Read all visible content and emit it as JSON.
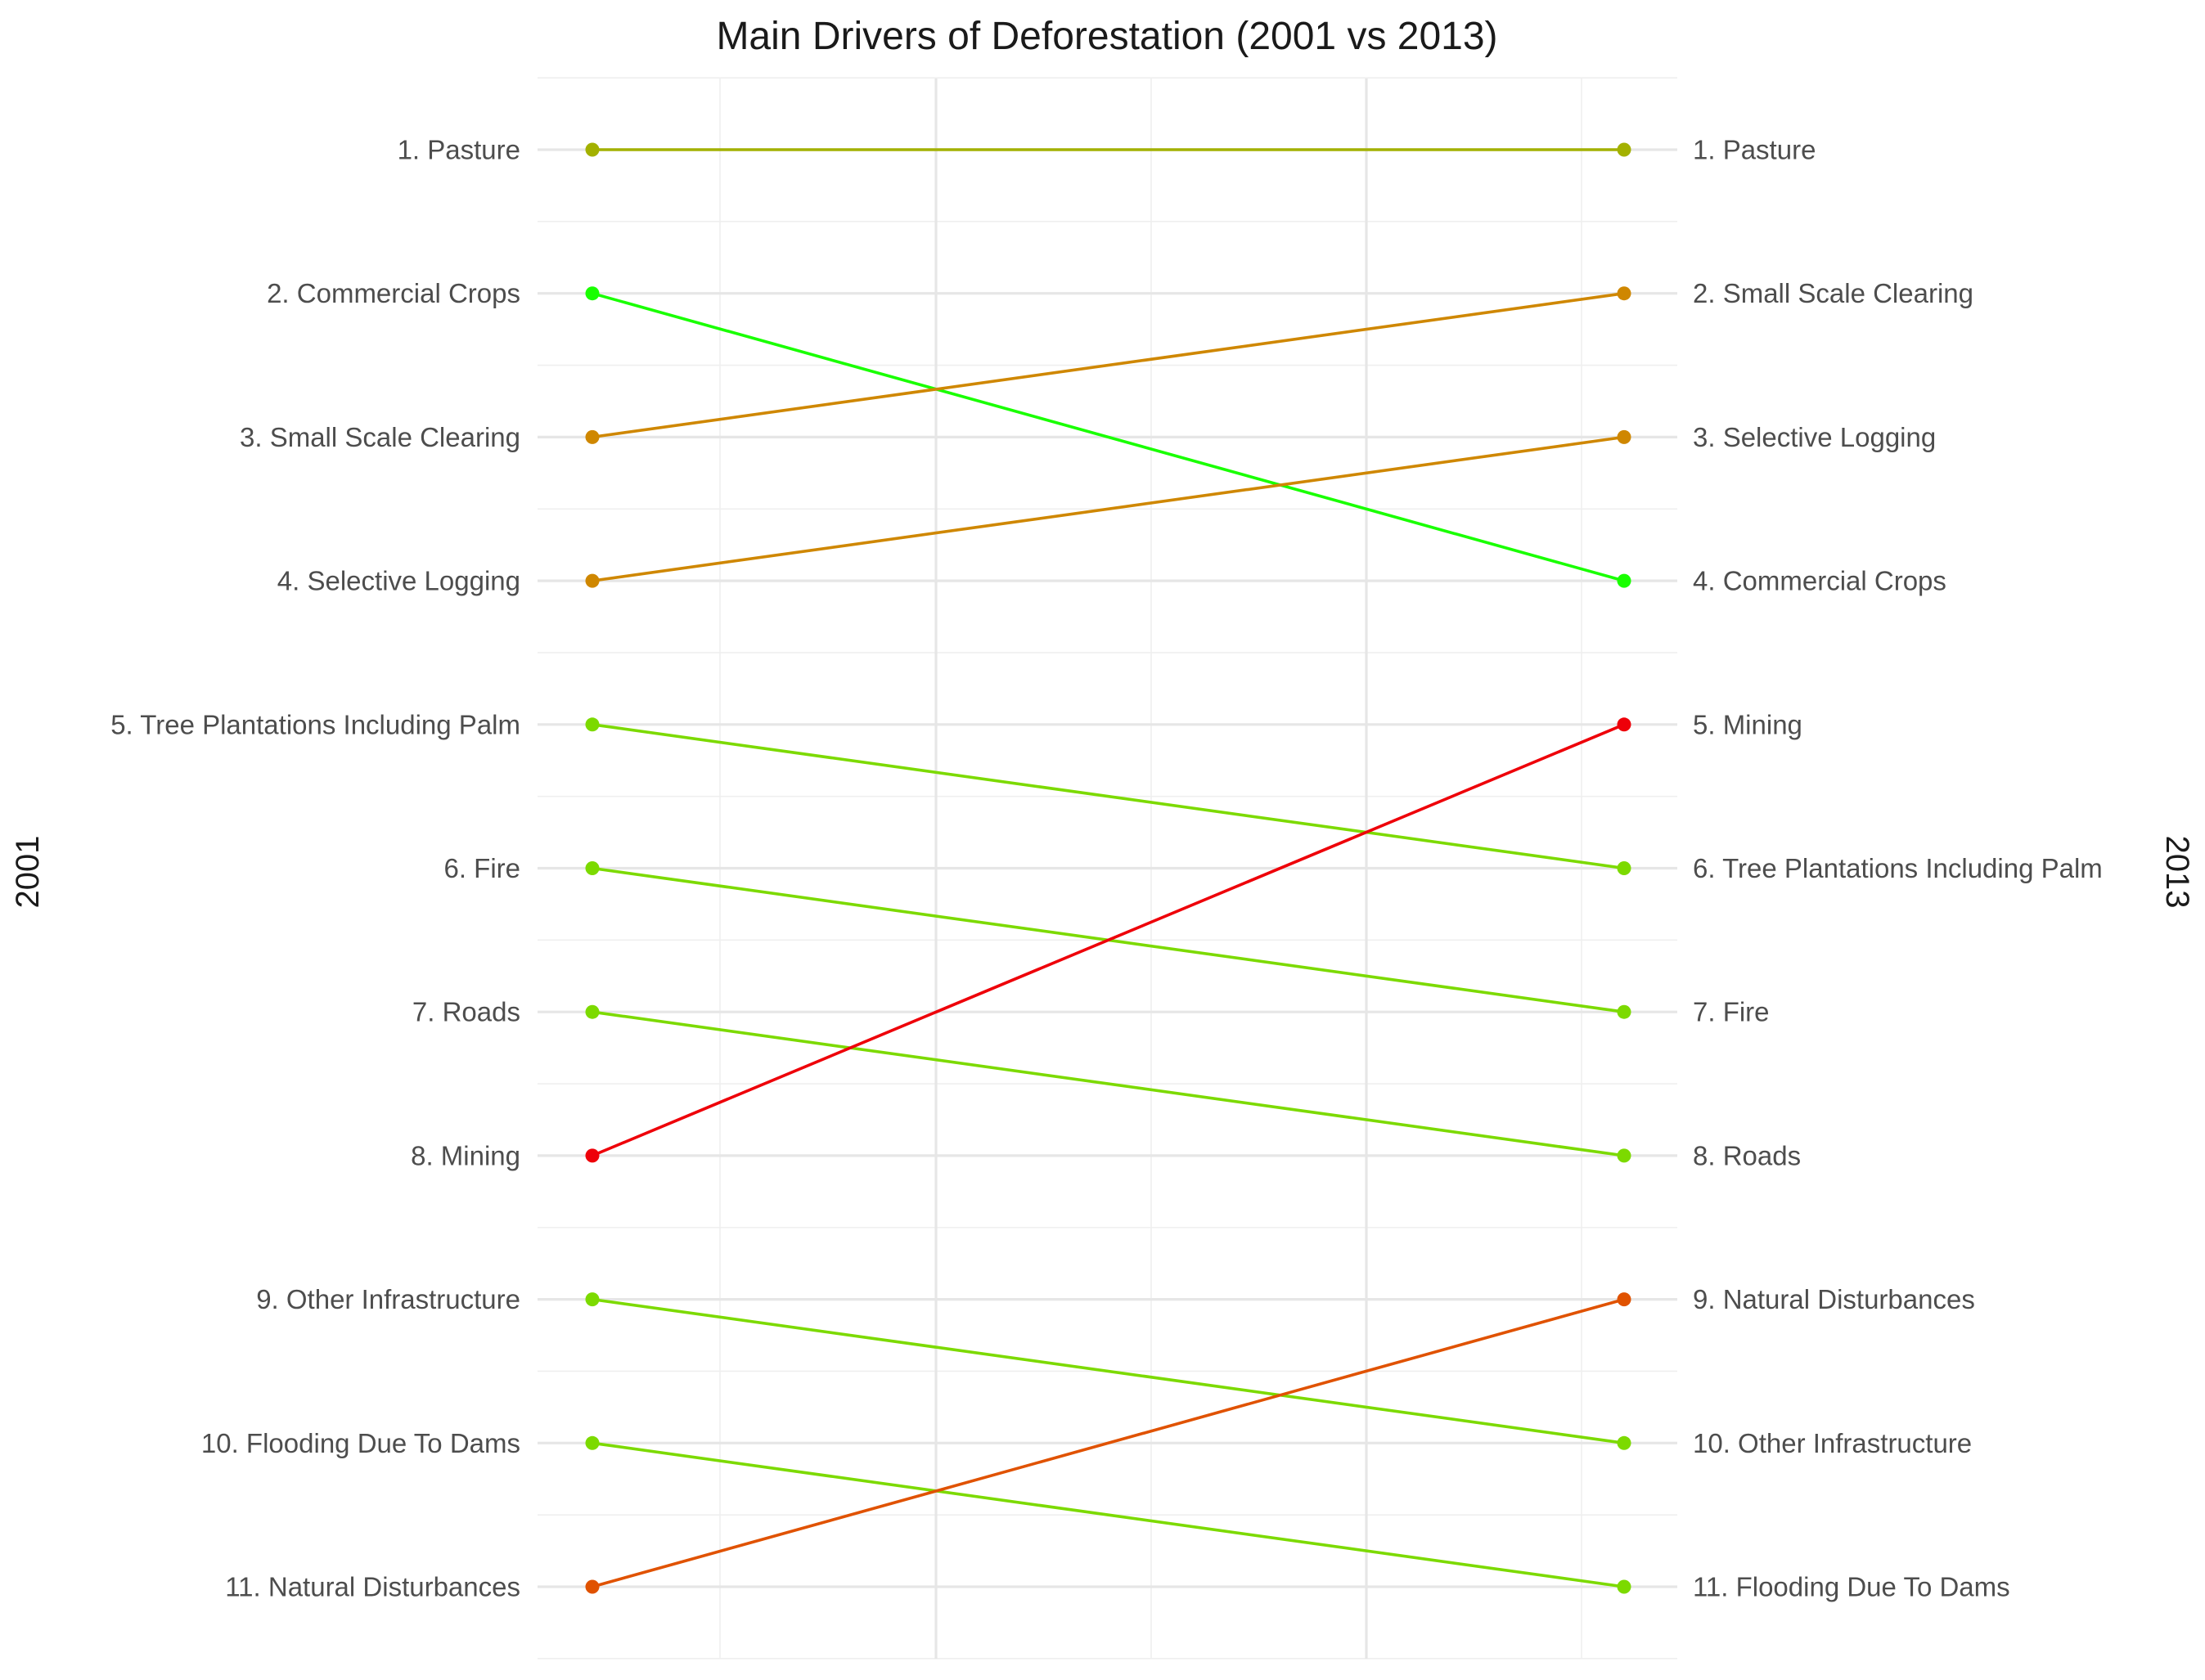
{
  "chart_data": {
    "type": "slope",
    "title": "Main Drivers of Deforestation (2001 vs 2013)",
    "left_axis_label": "2001",
    "right_axis_label": "2013",
    "rank_range": [
      1,
      11
    ],
    "grid": true,
    "left_labels": [
      "1. Pasture",
      "2. Commercial Crops",
      "3. Small Scale Clearing",
      "4. Selective Logging",
      "5. Tree Plantations Including Palm",
      "6. Fire",
      "7. Roads",
      "8. Mining",
      "9. Other Infrastructure",
      "10. Flooding Due To Dams",
      "11. Natural Disturbances"
    ],
    "right_labels": [
      "1. Pasture",
      "2. Small Scale Clearing",
      "3. Selective Logging",
      "4. Commercial Crops",
      "5. Mining",
      "6. Tree Plantations Including Palm",
      "7. Fire",
      "8. Roads",
      "9. Natural Disturbances",
      "10. Other Infrastructure",
      "11. Flooding Due To Dams"
    ],
    "series": [
      {
        "driver": "Pasture",
        "rank_2001": 1,
        "rank_2013": 1,
        "color": "#a3b100"
      },
      {
        "driver": "Commercial Crops",
        "rank_2001": 2,
        "rank_2013": 4,
        "color": "#19ff00"
      },
      {
        "driver": "Small Scale Clearing",
        "rank_2001": 3,
        "rank_2013": 2,
        "color": "#cf8700"
      },
      {
        "driver": "Selective Logging",
        "rank_2001": 4,
        "rank_2013": 3,
        "color": "#cf8700"
      },
      {
        "driver": "Tree Plantations Including Palm",
        "rank_2001": 5,
        "rank_2013": 6,
        "color": "#7cda00"
      },
      {
        "driver": "Fire",
        "rank_2001": 6,
        "rank_2013": 7,
        "color": "#7cda00"
      },
      {
        "driver": "Roads",
        "rank_2001": 7,
        "rank_2013": 8,
        "color": "#7cda00"
      },
      {
        "driver": "Mining",
        "rank_2001": 8,
        "rank_2013": 5,
        "color": "#ee0009"
      },
      {
        "driver": "Other Infrastructure",
        "rank_2001": 9,
        "rank_2013": 10,
        "color": "#7cda00"
      },
      {
        "driver": "Flooding Due To Dams",
        "rank_2001": 10,
        "rank_2013": 11,
        "color": "#7cda00"
      },
      {
        "driver": "Natural Disturbances",
        "rank_2001": 11,
        "rank_2013": 9,
        "color": "#e05200"
      }
    ]
  }
}
